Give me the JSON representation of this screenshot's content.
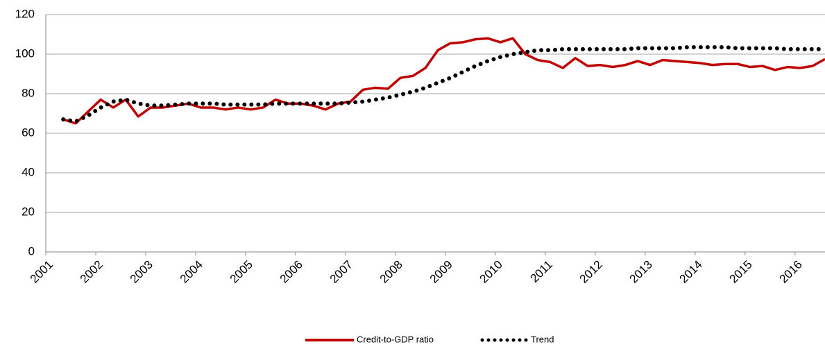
{
  "chart_data": {
    "type": "line",
    "x": [
      2001.35,
      2001.6,
      2001.85,
      2002.1,
      2002.35,
      2002.6,
      2002.85,
      2003.1,
      2003.35,
      2003.6,
      2003.85,
      2004.1,
      2004.35,
      2004.6,
      2004.85,
      2005.1,
      2005.35,
      2005.6,
      2005.85,
      2006.1,
      2006.35,
      2006.6,
      2006.85,
      2007.1,
      2007.35,
      2007.6,
      2007.85,
      2008.1,
      2008.35,
      2008.6,
      2008.85,
      2009.1,
      2009.35,
      2009.6,
      2009.85,
      2010.1,
      2010.35,
      2010.6,
      2010.85,
      2011.1,
      2011.35,
      2011.6,
      2011.85,
      2012.1,
      2012.35,
      2012.6,
      2012.85,
      2013.1,
      2013.35,
      2013.6,
      2013.85,
      2014.1,
      2014.35,
      2014.6,
      2014.85,
      2015.1,
      2015.35,
      2015.6,
      2015.85,
      2016.1,
      2016.35,
      2016.6
    ],
    "series": [
      {
        "name": "Credit-to-GDP ratio",
        "color": "#c00000",
        "style": "solid",
        "values": [
          67,
          65,
          71,
          77,
          73,
          77,
          68.5,
          73,
          73,
          74,
          75,
          73,
          73,
          72,
          73,
          72,
          73,
          77,
          75,
          75,
          74,
          72,
          75,
          76,
          82,
          83,
          82.5,
          88,
          89,
          93,
          102,
          105.5,
          106,
          107.5,
          108,
          106,
          108,
          100,
          97,
          96,
          93,
          98,
          94,
          94.5,
          93.5,
          94.5,
          96.5,
          94.5,
          97,
          96.5,
          96,
          95.5,
          94.5,
          95,
          95,
          93.5,
          94,
          92,
          93.5,
          93,
          94,
          97.5
        ]
      },
      {
        "name": "Trend",
        "color": "#000000",
        "style": "dotted",
        "values": [
          67,
          66,
          69,
          73,
          76,
          77,
          75,
          74,
          74,
          74.5,
          75,
          75,
          75,
          74.5,
          74.5,
          74.5,
          74.5,
          75,
          75,
          75,
          75,
          75,
          75,
          75.5,
          76,
          77,
          78,
          79.5,
          81,
          83,
          85.5,
          88,
          91,
          94,
          96.5,
          98.5,
          100,
          101,
          102,
          102,
          102.5,
          102.5,
          102.5,
          102.5,
          102.5,
          102.5,
          103,
          103,
          103,
          103,
          103.5,
          103.5,
          103.5,
          103.5,
          103,
          103,
          103,
          103,
          102.5,
          102.5,
          102.5,
          102.5
        ]
      }
    ],
    "xlim": [
      2001,
      2016.6
    ],
    "xticks": [
      2001,
      2002,
      2003,
      2004,
      2005,
      2006,
      2007,
      2008,
      2009,
      2010,
      2011,
      2012,
      2013,
      2014,
      2015,
      2016
    ],
    "ylim": [
      0,
      120
    ],
    "yticks": [
      0,
      20,
      40,
      60,
      80,
      100,
      120
    ],
    "grid": true,
    "legend": "bottom"
  }
}
